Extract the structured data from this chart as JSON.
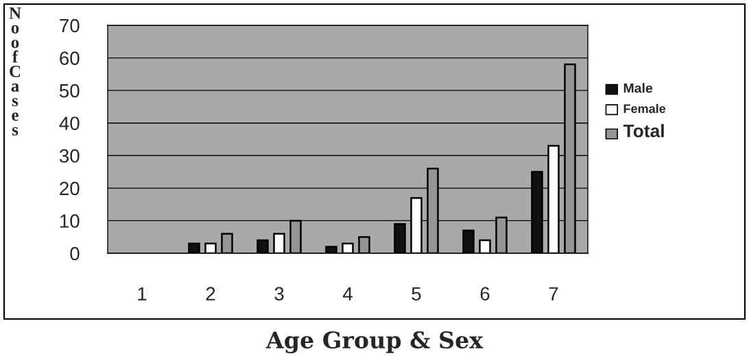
{
  "chart_data": {
    "type": "bar",
    "xlabel": "Age Group & Sex",
    "ylabel": "No of Cases",
    "categories": [
      "1",
      "2",
      "3",
      "4",
      "5",
      "6",
      "7"
    ],
    "series": [
      {
        "name": "Male",
        "color": "#111111",
        "values": [
          null,
          3,
          4,
          2,
          9,
          7,
          25
        ]
      },
      {
        "name": "Female",
        "color": "#ffffff",
        "values": [
          null,
          3,
          6,
          3,
          17,
          4,
          33
        ]
      },
      {
        "name": "Total",
        "color": "#959595",
        "values": [
          null,
          6,
          10,
          5,
          26,
          11,
          58
        ]
      }
    ],
    "ylim": [
      0,
      70
    ],
    "yticks": [
      0,
      10,
      20,
      30,
      40,
      50,
      60,
      70
    ],
    "grid": "y",
    "legend": "right"
  }
}
